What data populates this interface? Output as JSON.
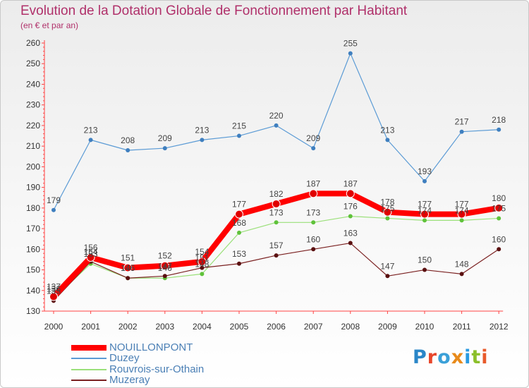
{
  "header": {
    "title": "Evolution de la Dotation Globale de Fonctionnement par Habitant",
    "subtitle": "(en € et par an)"
  },
  "logo": {
    "text": "Proxiti",
    "colors": [
      "#2a86c8",
      "#e8462b",
      "#3aa0d8",
      "#e88a1a",
      "#2a9ae0",
      "#8bbf2a",
      "#e85a2a"
    ]
  },
  "chart_data": {
    "type": "line",
    "title": "Evolution de la Dotation Globale de Fonctionnement par Habitant",
    "subtitle": "(en € et par an)",
    "xlabel": "",
    "ylabel": "",
    "x": [
      "2000",
      "2001",
      "2002",
      "2003",
      "2004",
      "2005",
      "2006",
      "2007",
      "2008",
      "2009",
      "2010",
      "2011",
      "2012"
    ],
    "ylim": [
      130,
      260
    ],
    "yticks": [
      130,
      140,
      150,
      160,
      170,
      180,
      190,
      200,
      210,
      220,
      230,
      240,
      250,
      260
    ],
    "grid": false,
    "legend": "bottom-left",
    "series": [
      {
        "name": "Duzey",
        "color": "#5b9bd5",
        "marker": "#3f7fbf",
        "width": 1.2,
        "values": [
          179,
          213,
          208,
          209,
          213,
          215,
          220,
          209,
          255,
          213,
          193,
          217,
          218
        ],
        "labels": [
          "179",
          "213",
          "208",
          "209",
          "213",
          "215",
          "220",
          "209",
          "255",
          "213",
          "193",
          "217",
          "218"
        ]
      },
      {
        "name": "Rouvrois-sur-Othain",
        "color": "#9be07a",
        "marker": "#5fc23a",
        "width": 1.2,
        "values": [
          136,
          153,
          146,
          146,
          148,
          168,
          173,
          173,
          176,
          175,
          174,
          174,
          175
        ],
        "labels": [
          "136",
          "153",
          "146",
          "146",
          "148",
          "168",
          "173",
          "173",
          "176",
          "175",
          "174",
          "174",
          "175"
        ]
      },
      {
        "name": "Muzeray",
        "color": "#7a2020",
        "marker": "#5a1010",
        "width": 1.2,
        "values": [
          135,
          154,
          146,
          147,
          151,
          153,
          157,
          160,
          163,
          147,
          150,
          148,
          160
        ],
        "labels": [
          "135",
          "154",
          "146",
          "147",
          "151",
          "153",
          "157",
          "160",
          "163",
          "147",
          "150",
          "148",
          "160"
        ]
      },
      {
        "name": "NOUILLONPONT",
        "color": "#ff0000",
        "marker": "#e00000",
        "width": 8,
        "values": [
          137,
          156,
          151,
          152,
          154,
          177,
          182,
          187,
          187,
          178,
          177,
          177,
          180
        ],
        "labels": [
          "137",
          "156",
          "151",
          "152",
          "154",
          "177",
          "182",
          "187",
          "187",
          "178",
          "177",
          "177",
          "180"
        ]
      }
    ],
    "legend_order": [
      "NOUILLONPONT",
      "Duzey",
      "Rouvrois-sur-Othain",
      "Muzeray"
    ]
  }
}
